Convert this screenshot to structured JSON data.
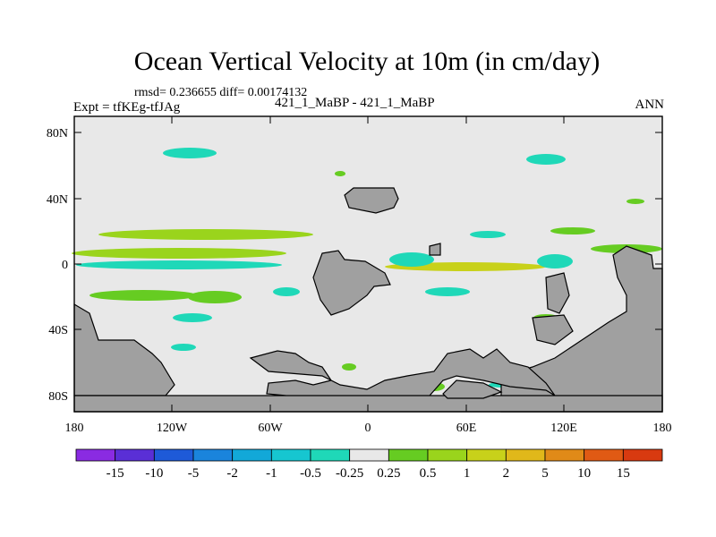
{
  "title": "Ocean Vertical Velocity at 10m (in cm/day)",
  "stats": "rmsd= 0.236655  diff= 0.00174132",
  "experiment": "Expt = tfKEg-tfJAg",
  "comparison": "421_1_MaBP - 421_1_MaBP",
  "season": "ANN",
  "y_ticks": [
    "80N",
    "40N",
    "0",
    "40S",
    "80S"
  ],
  "x_ticks": [
    "180",
    "120W",
    "60W",
    "0",
    "60E",
    "120E",
    "180"
  ],
  "colorbar": {
    "labels": [
      "-15",
      "-10",
      "-5",
      "-2",
      "-1",
      "-0.5",
      "-0.25",
      "0.25",
      "0.5",
      "1",
      "2",
      "5",
      "10",
      "15"
    ],
    "colors": [
      "#8a2be2",
      "#5a2fd6",
      "#1e5ad8",
      "#1a84dc",
      "#12a8d8",
      "#16c6d0",
      "#1fd8b8",
      "#e8e8e8",
      "#66cc22",
      "#9ad41c",
      "#c8d11a",
      "#e0b81a",
      "#e08a18",
      "#e05a14",
      "#d83a10"
    ]
  },
  "land_color": "#a0a0a0",
  "ocean_background": "#e8e8e8"
}
